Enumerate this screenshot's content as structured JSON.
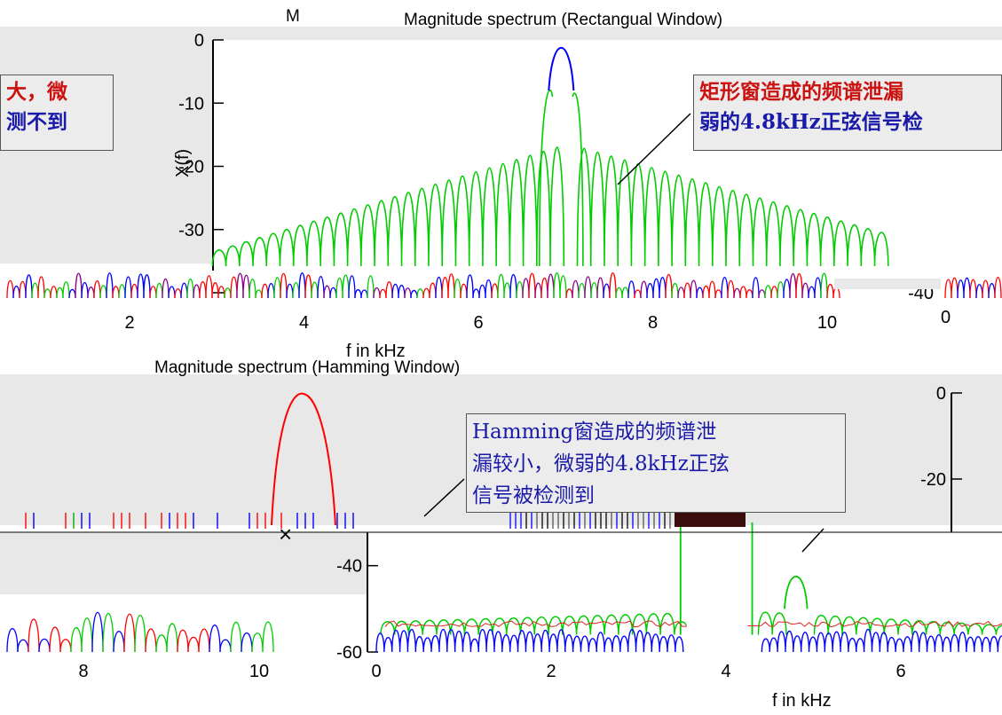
{
  "chart_data": [
    {
      "type": "line",
      "title": "Magnitude spectrum (Rectangual Window)",
      "title_fragment": "M",
      "xlabel": "f in kHz",
      "ylabel": "X(f)",
      "xlim": [
        1.0,
        10.6
      ],
      "ylim": [
        -40,
        0
      ],
      "x_ticks": [
        "2",
        "4",
        "6",
        "8",
        "10"
      ],
      "y_ticks": [
        "0",
        "-10",
        "-20",
        "-30",
        "-40"
      ],
      "x_tick_fragment": "0",
      "series": [
        {
          "color": "#00cc00",
          "peak_x": 6.95,
          "peak_y": -10,
          "sidelobe_start_db": -32,
          "sidelobe_end_db": -45
        },
        {
          "color": "#0000ff",
          "peak_x": 6.95,
          "peak_y": 0
        }
      ],
      "annotation": {
        "line1": "矩形窗造成的频谱泄漏",
        "line2": "弱的4.8kHz正弦信号检",
        "left_line1": "大，微",
        "left_line2": "测不到"
      }
    },
    {
      "type": "line",
      "title": "Magnitude spectrum (Hamming Window)",
      "xlabel": "f in kHz",
      "xlim": [
        -0.05,
        7.3
      ],
      "ylim": [
        -60,
        0
      ],
      "x_ticks": [
        "0",
        "2",
        "4",
        "6"
      ],
      "y_ticks": [
        "-40",
        "-60"
      ],
      "left_x_ticks": [
        "8",
        "10"
      ],
      "right_y_ticks": [
        "0",
        "-20"
      ],
      "series": [
        {
          "color": "#00cc00",
          "main_peak_x": 4.0,
          "small_peak_x": 4.8,
          "small_peak_y": -37,
          "sidelobe_db": -52
        },
        {
          "color": "#0000ff",
          "sidelobe_db": -57
        },
        {
          "color": "#ff0000",
          "note": "Hamming main lobe"
        }
      ],
      "annotation": {
        "line1": "Hamming窗造成的频谱泄",
        "line2": "漏较小，微弱的4.8kHz正弦",
        "line3": "信号被检测到"
      },
      "close_glyph": "×"
    }
  ]
}
